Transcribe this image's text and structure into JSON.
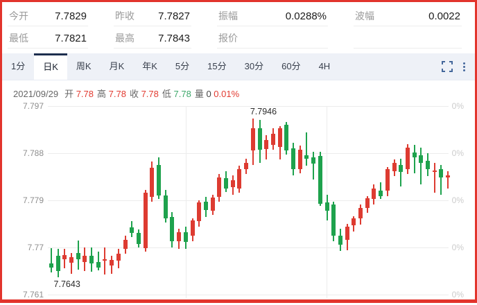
{
  "header": {
    "cells": [
      {
        "id": "today-open",
        "label": "今开",
        "value": "7.7829"
      },
      {
        "id": "prev-close",
        "label": "昨收",
        "value": "7.7827"
      },
      {
        "id": "amplitude",
        "label": "振幅",
        "value": "0.0288%"
      },
      {
        "id": "wave-range",
        "label": "波幅",
        "value": "0.0022"
      },
      {
        "id": "lowest",
        "label": "最低",
        "value": "7.7821"
      },
      {
        "id": "highest",
        "label": "最高",
        "value": "7.7843"
      },
      {
        "id": "quote",
        "label": "报价",
        "value": ""
      },
      {
        "id": "empty",
        "label": "",
        "value": ""
      }
    ]
  },
  "toolbar": {
    "tabs": [
      {
        "id": "1min",
        "label": "1分",
        "active": false
      },
      {
        "id": "daily-k",
        "label": "日K",
        "active": true
      },
      {
        "id": "weekly-k",
        "label": "周K",
        "active": false
      },
      {
        "id": "monthly-k",
        "label": "月K",
        "active": false
      },
      {
        "id": "yearly-k",
        "label": "年K",
        "active": false
      },
      {
        "id": "5min",
        "label": "5分",
        "active": false
      },
      {
        "id": "15min",
        "label": "15分",
        "active": false
      },
      {
        "id": "30min",
        "label": "30分",
        "active": false
      },
      {
        "id": "60min",
        "label": "60分",
        "active": false
      },
      {
        "id": "4h",
        "label": "4H",
        "active": false
      }
    ],
    "icons": [
      {
        "name": "fullscreen-icon"
      },
      {
        "name": "kebab-menu-icon"
      }
    ]
  },
  "info_line": {
    "date": "2021/09/29",
    "parts": [
      {
        "id": "open",
        "label": "开",
        "value": "7.78",
        "tone": "up"
      },
      {
        "id": "high",
        "label": "高",
        "value": "7.78",
        "tone": "up"
      },
      {
        "id": "close",
        "label": "收",
        "value": "7.78",
        "tone": "up"
      },
      {
        "id": "low",
        "label": "低",
        "value": "7.78",
        "tone": "down"
      },
      {
        "id": "volume",
        "label": "量",
        "value": "0",
        "tone": "plain"
      },
      {
        "id": "change",
        "label": "",
        "value": "0.01%",
        "tone": "up"
      }
    ]
  },
  "chart_data": {
    "type": "candlestick",
    "title": "日K candlestick chart, last day 2021/09/29",
    "y_axis_labels": [
      "7.797",
      "7.788",
      "7.779",
      "7.77",
      "7.761"
    ],
    "y_axis_values": [
      7.797,
      7.788,
      7.779,
      7.77,
      7.761
    ],
    "right_axis_labels": [
      "0%",
      "0%",
      "0%",
      "0%",
      "0%"
    ],
    "ylim": [
      7.761,
      7.797
    ],
    "grid": true,
    "high_annotation": "7.7946",
    "low_annotation": "7.7643",
    "up_color": "#dd3b31",
    "down_color": "#1ea24d",
    "candles": [
      [
        7.767,
        7.7699,
        7.7653,
        7.7662
      ],
      [
        7.7684,
        7.7697,
        7.7643,
        7.7655
      ],
      [
        7.7678,
        7.7697,
        7.766,
        7.7686
      ],
      [
        7.7671,
        7.769,
        7.765,
        7.7682
      ],
      [
        7.769,
        7.7713,
        7.7658,
        7.7678
      ],
      [
        7.7672,
        7.77,
        7.7655,
        7.7684
      ],
      [
        7.7684,
        7.77,
        7.7654,
        7.767
      ],
      [
        7.7672,
        7.7692,
        7.7656,
        7.7662
      ],
      [
        7.7678,
        7.77,
        7.7648,
        7.7678
      ],
      [
        7.7666,
        7.7684,
        7.765,
        7.7676
      ],
      [
        7.7675,
        7.7697,
        7.766,
        7.7688
      ],
      [
        7.7697,
        7.7722,
        7.7688,
        7.7715
      ],
      [
        7.7738,
        7.775,
        7.772,
        7.7728
      ],
      [
        7.7728,
        7.7735,
        7.77,
        7.7706
      ],
      [
        7.7699,
        7.781,
        7.7692,
        7.7804
      ],
      [
        7.7796,
        7.7864,
        7.7788,
        7.7852
      ],
      [
        7.7858,
        7.7872,
        7.7792,
        7.7799
      ],
      [
        7.7799,
        7.781,
        7.7748,
        7.7756
      ],
      [
        7.7758,
        7.7768,
        7.77,
        7.7712
      ],
      [
        7.7712,
        7.7736,
        7.7697,
        7.7729
      ],
      [
        7.7729,
        7.774,
        7.7697,
        7.771
      ],
      [
        7.7722,
        7.7756,
        7.7712,
        7.7751
      ],
      [
        7.775,
        7.779,
        7.774,
        7.7786
      ],
      [
        7.7788,
        7.7797,
        7.7758,
        7.7772
      ],
      [
        7.777,
        7.78,
        7.7762,
        7.7795
      ],
      [
        7.7797,
        7.784,
        7.7788,
        7.7834
      ],
      [
        7.7832,
        7.7845,
        7.7806,
        7.7812
      ],
      [
        7.7815,
        7.7838,
        7.78,
        7.7828
      ],
      [
        7.7813,
        7.7856,
        7.7805,
        7.7849
      ],
      [
        7.7849,
        7.787,
        7.784,
        7.7862
      ],
      [
        7.7885,
        7.7946,
        7.7858,
        7.7928
      ],
      [
        7.7928,
        7.7944,
        7.7862,
        7.7887
      ],
      [
        7.7888,
        7.7915,
        7.7868,
        7.7905
      ],
      [
        7.7896,
        7.7928,
        7.7886,
        7.7917
      ],
      [
        7.7892,
        7.7932,
        7.7868,
        7.7928
      ],
      [
        7.7934,
        7.794,
        7.7878,
        7.7885
      ],
      [
        7.7889,
        7.79,
        7.7838,
        7.785
      ],
      [
        7.785,
        7.7895,
        7.7842,
        7.7887
      ],
      [
        7.7876,
        7.792,
        7.7856,
        7.787
      ],
      [
        7.7872,
        7.7882,
        7.783,
        7.786
      ],
      [
        7.7875,
        7.7882,
        7.778,
        7.7784
      ],
      [
        7.7786,
        7.78,
        7.7752,
        7.777
      ],
      [
        7.7782,
        7.7788,
        7.7712,
        7.7722
      ],
      [
        7.7722,
        7.7736,
        7.7694,
        7.7705
      ],
      [
        7.7715,
        7.7745,
        7.7695,
        7.774
      ],
      [
        7.7742,
        7.776,
        7.773,
        7.7756
      ],
      [
        7.7755,
        7.7782,
        7.7744,
        7.7776
      ],
      [
        7.7776,
        7.7798,
        7.7766,
        7.7794
      ],
      [
        7.7792,
        7.782,
        7.7782,
        7.7813
      ],
      [
        7.7808,
        7.7824,
        7.7792,
        7.7798
      ],
      [
        7.7808,
        7.7854,
        7.7798,
        7.785
      ],
      [
        7.7846,
        7.7868,
        7.7836,
        7.7862
      ],
      [
        7.7858,
        7.787,
        7.7816,
        7.7844
      ],
      [
        7.785,
        7.7897,
        7.784,
        7.789
      ],
      [
        7.7881,
        7.7896,
        7.7842,
        7.7872
      ],
      [
        7.7876,
        7.789,
        7.782,
        7.7862
      ],
      [
        7.7866,
        7.788,
        7.7836,
        7.7849
      ],
      [
        7.7845,
        7.7862,
        7.7804,
        7.7847
      ],
      [
        7.785,
        7.7858,
        7.78,
        7.7834
      ],
      [
        7.7833,
        7.7845,
        7.7812,
        7.7838
      ]
    ]
  }
}
